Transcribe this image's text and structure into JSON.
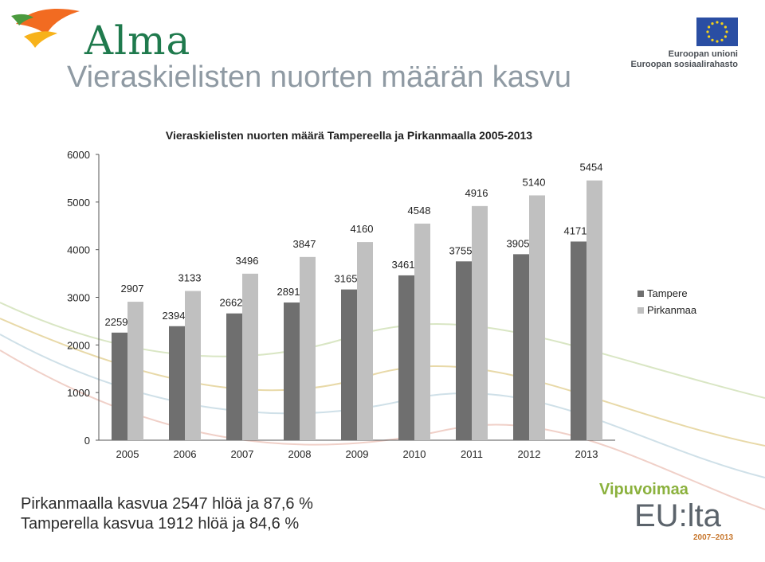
{
  "header": {
    "brand": "Alma",
    "title": "Vieraskielisten nuorten määrän kasvu",
    "eu_line1": "Euroopan unioni",
    "eu_line2": "Euroopan sosiaalirahasto"
  },
  "footer": {
    "note1": "Pirkanmaalla kasvua 2547 hlöä ja 87,6 %",
    "note2": "Tamperella kasvua 1912 hlöä ja 84,6 %",
    "vip_top": "Vipuvoimaa",
    "vip_mid": "EU:lta",
    "vip_bot": "2007–2013"
  },
  "colors": {
    "tampere": "#6f6f6f",
    "pirkanmaa": "#c0c0c0",
    "alma_green": "#1f7a4d",
    "eu_blue": "#2a4ea3",
    "eu_star": "#f4d21b"
  },
  "chart_data": {
    "type": "bar",
    "title": "Vieraskielisten nuorten määrä Tampereella ja Pirkanmaalla 2005-2013",
    "categories": [
      "2005",
      "2006",
      "2007",
      "2008",
      "2009",
      "2010",
      "2011",
      "2012",
      "2013"
    ],
    "series": [
      {
        "name": "Tampere",
        "values": [
          2259,
          2394,
          2662,
          2891,
          3165,
          3461,
          3755,
          3905,
          4171
        ]
      },
      {
        "name": "Pirkanmaa",
        "values": [
          2907,
          3133,
          3496,
          3847,
          4160,
          4548,
          4916,
          5140,
          5454
        ]
      }
    ],
    "ylim": [
      0,
      6000
    ],
    "yticks": [
      "0",
      "1000",
      "2000",
      "3000",
      "4000",
      "5000",
      "6000"
    ],
    "legend": "right",
    "grid": false,
    "data_labels": true
  }
}
